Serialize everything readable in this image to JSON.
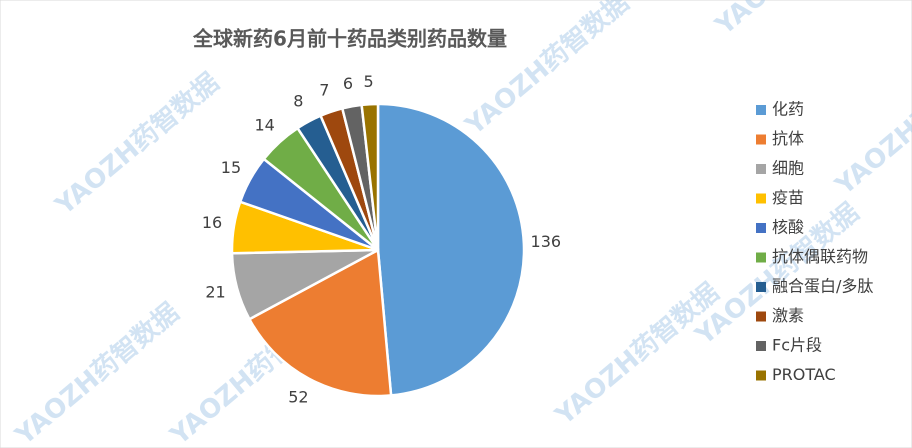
{
  "chart_data": {
    "type": "pie",
    "title": "全球新药6月前十药品类别药品数量",
    "watermark": "YAOZH药智数据",
    "categories": [
      "化药",
      "抗体",
      "细胞",
      "疫苗",
      "核酸",
      "抗体偶联药物",
      "融合蛋白/多肽",
      "激素",
      "Fc片段",
      "PROTAC"
    ],
    "values": [
      136,
      52,
      21,
      16,
      15,
      14,
      8,
      7,
      6,
      5
    ],
    "colors": [
      "#5b9bd5",
      "#ed7d31",
      "#a5a5a5",
      "#ffc000",
      "#4472c4",
      "#70ad47",
      "#255e91",
      "#9e480e",
      "#636363",
      "#997300"
    ],
    "legend": "right"
  }
}
